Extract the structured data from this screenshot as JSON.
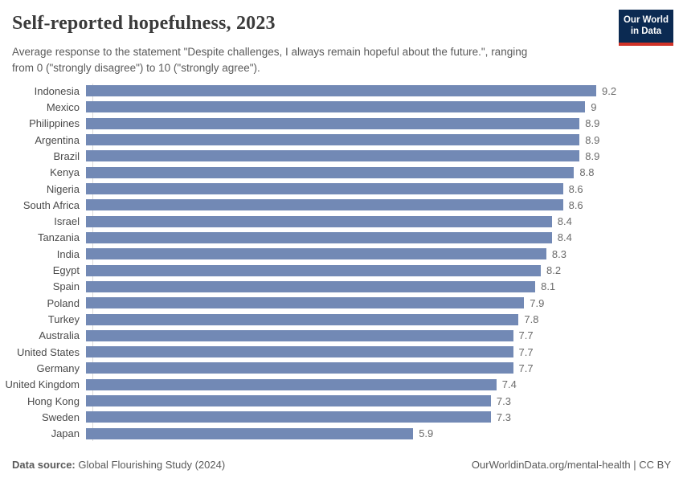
{
  "header": {
    "title": "Self-reported hopefulness, 2023",
    "subtitle_line1": "Average response to the statement \"Despite challenges, I always remain hopeful about the future.\", ranging",
    "subtitle_line2": "from 0 (\"strongly disagree\") to 10 (\"strongly agree\").",
    "logo_line1": "Our World",
    "logo_line2": "in Data",
    "logo_bg_color": "#0b2a52",
    "logo_accent_color": "#d13328"
  },
  "chart_data": {
    "type": "bar",
    "orientation": "horizontal",
    "title": "Self-reported hopefulness, 2023",
    "xlabel": "",
    "ylabel": "",
    "xlim": [
      0,
      9.2
    ],
    "grid": false,
    "legend": false,
    "bar_color": "#7289b5",
    "categories": [
      "Indonesia",
      "Mexico",
      "Philippines",
      "Argentina",
      "Brazil",
      "Kenya",
      "Nigeria",
      "South Africa",
      "Israel",
      "Tanzania",
      "India",
      "Egypt",
      "Spain",
      "Poland",
      "Turkey",
      "Australia",
      "United States",
      "Germany",
      "United Kingdom",
      "Hong Kong",
      "Sweden",
      "Japan"
    ],
    "values": [
      9.2,
      9,
      8.9,
      8.9,
      8.9,
      8.8,
      8.6,
      8.6,
      8.4,
      8.4,
      8.3,
      8.2,
      8.1,
      7.9,
      7.8,
      7.7,
      7.7,
      7.7,
      7.4,
      7.3,
      7.3,
      5.9
    ],
    "value_labels": [
      "9.2",
      "9",
      "8.9",
      "8.9",
      "8.9",
      "8.8",
      "8.6",
      "8.6",
      "8.4",
      "8.4",
      "8.3",
      "8.2",
      "8.1",
      "7.9",
      "7.8",
      "7.7",
      "7.7",
      "7.7",
      "7.4",
      "7.3",
      "7.3",
      "5.9"
    ]
  },
  "footer": {
    "source_label": "Data source:",
    "source_text": " Global Flourishing Study (2024)",
    "credit_text": "OurWorldinData.org/mental-health | CC BY"
  }
}
